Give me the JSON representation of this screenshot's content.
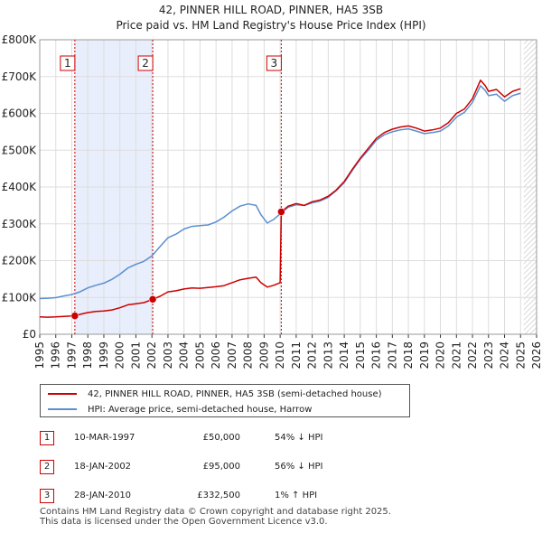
{
  "chart_data": {
    "type": "line",
    "title": "42, PINNER HILL ROAD, PINNER, HA5 3SB",
    "subtitle": "Price paid vs. HM Land Registry's House Price Index (HPI)",
    "xlabel": "",
    "ylabel": "",
    "xlim": [
      1995,
      2026
    ],
    "ylim": [
      0,
      800000
    ],
    "x_ticks": [
      "1995",
      "1996",
      "1997",
      "1998",
      "1999",
      "2000",
      "2001",
      "2002",
      "2003",
      "2004",
      "2005",
      "2006",
      "2007",
      "2008",
      "2009",
      "2010",
      "2011",
      "2012",
      "2013",
      "2014",
      "2015",
      "2016",
      "2017",
      "2018",
      "2019",
      "2020",
      "2021",
      "2022",
      "2023",
      "2024",
      "2025",
      "2026"
    ],
    "y_ticks": [
      {
        "value": 0,
        "label": "£0"
      },
      {
        "value": 100000,
        "label": "£100K"
      },
      {
        "value": 200000,
        "label": "£200K"
      },
      {
        "value": 300000,
        "label": "£300K"
      },
      {
        "value": 400000,
        "label": "£400K"
      },
      {
        "value": 500000,
        "label": "£500K"
      },
      {
        "value": 600000,
        "label": "£600K"
      },
      {
        "value": 700000,
        "label": "£700K"
      },
      {
        "value": 800000,
        "label": "£800K"
      }
    ],
    "grid": true,
    "series": [
      {
        "name": "42, PINNER HILL ROAD, PINNER, HA5 3SB (semi-detached house)",
        "color": "#cc0000",
        "points": [
          [
            1995.0,
            47000
          ],
          [
            1995.5,
            46500
          ],
          [
            1996.0,
            47000
          ],
          [
            1996.5,
            48500
          ],
          [
            1997.0,
            49500
          ],
          [
            1997.19,
            50000
          ],
          [
            1997.5,
            54000
          ],
          [
            1998.0,
            59000
          ],
          [
            1998.5,
            62000
          ],
          [
            1999.0,
            63000
          ],
          [
            1999.5,
            66000
          ],
          [
            2000.0,
            72000
          ],
          [
            2000.5,
            80000
          ],
          [
            2001.0,
            83000
          ],
          [
            2001.5,
            86000
          ],
          [
            2002.05,
            95000
          ],
          [
            2002.5,
            103000
          ],
          [
            2003.0,
            115000
          ],
          [
            2003.5,
            118000
          ],
          [
            2004.0,
            123000
          ],
          [
            2004.5,
            126000
          ],
          [
            2005.0,
            125000
          ],
          [
            2005.5,
            127000
          ],
          [
            2006.0,
            129000
          ],
          [
            2006.5,
            132000
          ],
          [
            2007.0,
            140000
          ],
          [
            2007.5,
            148000
          ],
          [
            2008.0,
            152000
          ],
          [
            2008.5,
            155000
          ],
          [
            2008.8,
            140000
          ],
          [
            2009.2,
            128000
          ],
          [
            2009.6,
            133000
          ],
          [
            2010.0,
            140000
          ],
          [
            2010.07,
            332500
          ],
          [
            2010.5,
            348000
          ],
          [
            2011.0,
            355000
          ],
          [
            2011.5,
            350000
          ],
          [
            2012.0,
            360000
          ],
          [
            2012.5,
            365000
          ],
          [
            2013.0,
            375000
          ],
          [
            2013.5,
            392000
          ],
          [
            2014.0,
            415000
          ],
          [
            2014.5,
            448000
          ],
          [
            2015.0,
            478000
          ],
          [
            2015.5,
            505000
          ],
          [
            2016.0,
            532000
          ],
          [
            2016.5,
            548000
          ],
          [
            2017.0,
            557000
          ],
          [
            2017.5,
            563000
          ],
          [
            2018.0,
            566000
          ],
          [
            2018.5,
            560000
          ],
          [
            2019.0,
            552000
          ],
          [
            2019.5,
            555000
          ],
          [
            2020.0,
            560000
          ],
          [
            2020.5,
            575000
          ],
          [
            2021.0,
            600000
          ],
          [
            2021.5,
            612000
          ],
          [
            2022.0,
            640000
          ],
          [
            2022.5,
            690000
          ],
          [
            2022.8,
            675000
          ],
          [
            2023.0,
            660000
          ],
          [
            2023.5,
            665000
          ],
          [
            2024.0,
            645000
          ],
          [
            2024.5,
            660000
          ],
          [
            2025.0,
            667000
          ]
        ]
      },
      {
        "name": "HPI: Average price, semi-detached house, Harrow",
        "color": "#5b8fcf",
        "points": [
          [
            1995.0,
            97000
          ],
          [
            1995.5,
            98000
          ],
          [
            1996.0,
            99500
          ],
          [
            1996.5,
            104000
          ],
          [
            1997.0,
            108000
          ],
          [
            1997.5,
            115000
          ],
          [
            1998.0,
            126000
          ],
          [
            1998.5,
            133000
          ],
          [
            1999.0,
            139000
          ],
          [
            1999.5,
            149000
          ],
          [
            2000.0,
            163000
          ],
          [
            2000.5,
            180000
          ],
          [
            2001.0,
            190000
          ],
          [
            2001.5,
            198000
          ],
          [
            2002.0,
            213000
          ],
          [
            2002.5,
            238000
          ],
          [
            2003.0,
            262000
          ],
          [
            2003.5,
            272000
          ],
          [
            2004.0,
            286000
          ],
          [
            2004.5,
            293000
          ],
          [
            2005.0,
            295000
          ],
          [
            2005.5,
            297000
          ],
          [
            2006.0,
            305000
          ],
          [
            2006.5,
            318000
          ],
          [
            2007.0,
            335000
          ],
          [
            2007.5,
            348000
          ],
          [
            2008.0,
            354000
          ],
          [
            2008.5,
            350000
          ],
          [
            2008.8,
            325000
          ],
          [
            2009.2,
            302000
          ],
          [
            2009.6,
            312000
          ],
          [
            2010.0,
            327000
          ],
          [
            2010.5,
            345000
          ],
          [
            2011.0,
            352000
          ],
          [
            2011.5,
            350000
          ],
          [
            2012.0,
            357000
          ],
          [
            2012.5,
            362000
          ],
          [
            2013.0,
            372000
          ],
          [
            2013.5,
            390000
          ],
          [
            2014.0,
            412000
          ],
          [
            2014.5,
            445000
          ],
          [
            2015.0,
            475000
          ],
          [
            2015.5,
            500000
          ],
          [
            2016.0,
            527000
          ],
          [
            2016.5,
            542000
          ],
          [
            2017.0,
            550000
          ],
          [
            2017.5,
            555000
          ],
          [
            2018.0,
            558000
          ],
          [
            2018.5,
            552000
          ],
          [
            2019.0,
            545000
          ],
          [
            2019.5,
            548000
          ],
          [
            2020.0,
            552000
          ],
          [
            2020.5,
            566000
          ],
          [
            2021.0,
            590000
          ],
          [
            2021.5,
            603000
          ],
          [
            2022.0,
            630000
          ],
          [
            2022.5,
            675000
          ],
          [
            2022.8,
            662000
          ],
          [
            2023.0,
            648000
          ],
          [
            2023.5,
            652000
          ],
          [
            2024.0,
            633000
          ],
          [
            2024.5,
            648000
          ],
          [
            2025.0,
            655000
          ]
        ]
      }
    ],
    "sales": [
      {
        "label": "1",
        "x": 1997.19,
        "value": 50000
      },
      {
        "label": "2",
        "x": 2002.05,
        "value": 95000
      },
      {
        "label": "3",
        "x": 2010.07,
        "value": 332500
      }
    ],
    "shaded_periods": [
      [
        1997.19,
        2002.05
      ]
    ],
    "forecast_from": 2025.2
  },
  "legend": {
    "property_label": "42, PINNER HILL ROAD, PINNER, HA5 3SB (semi-detached house)",
    "hpi_label": "HPI: Average price, semi-detached house, Harrow",
    "property_color": "#cc0000",
    "hpi_color": "#5b8fcf"
  },
  "transactions": [
    {
      "num": "1",
      "date": "10-MAR-1997",
      "price": "£50,000",
      "hpi": "54% ↓ HPI"
    },
    {
      "num": "2",
      "date": "18-JAN-2002",
      "price": "£95,000",
      "hpi": "56% ↓ HPI"
    },
    {
      "num": "3",
      "date": "28-JAN-2010",
      "price": "£332,500",
      "hpi": "1% ↑ HPI"
    }
  ],
  "footer": {
    "line1": "Contains HM Land Registry data © Crown copyright and database right 2025.",
    "line2": "This data is licensed under the Open Government Licence v3.0."
  }
}
